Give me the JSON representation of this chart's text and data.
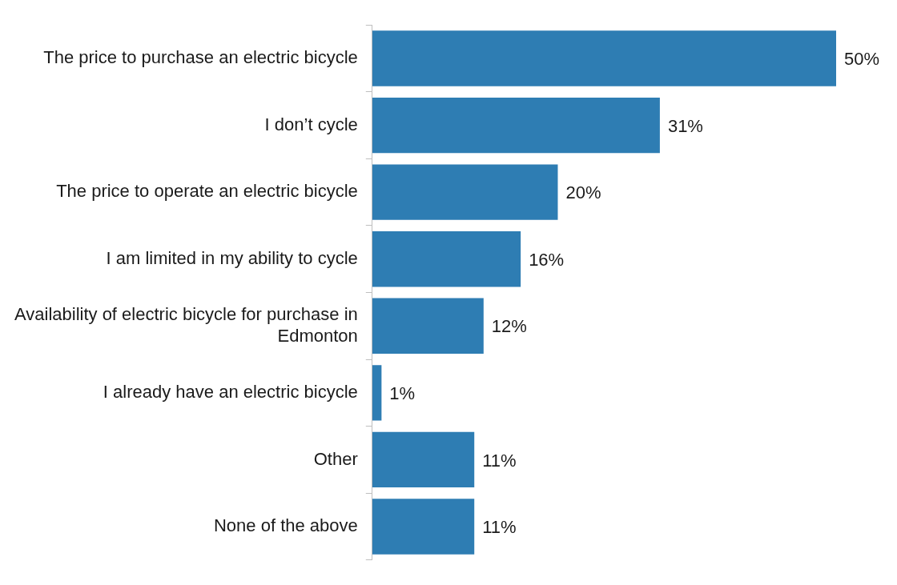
{
  "chart_data": {
    "type": "bar",
    "orientation": "horizontal",
    "categories": [
      "The price to purchase an electric bicycle",
      "I don’t cycle",
      "The price to operate an electric bicycle",
      "I am limited in my ability to cycle",
      "Availability of electric bicycle for purchase in Edmonton",
      "I already have an electric bicycle",
      "Other",
      "None of the above"
    ],
    "values": [
      50,
      31,
      20,
      16,
      12,
      1,
      11,
      11
    ],
    "value_labels": [
      "50%",
      "31%",
      "20%",
      "16%",
      "12%",
      "1%",
      "11%",
      "11%"
    ],
    "color": "#2e7db3",
    "grid": false,
    "legend": false
  }
}
